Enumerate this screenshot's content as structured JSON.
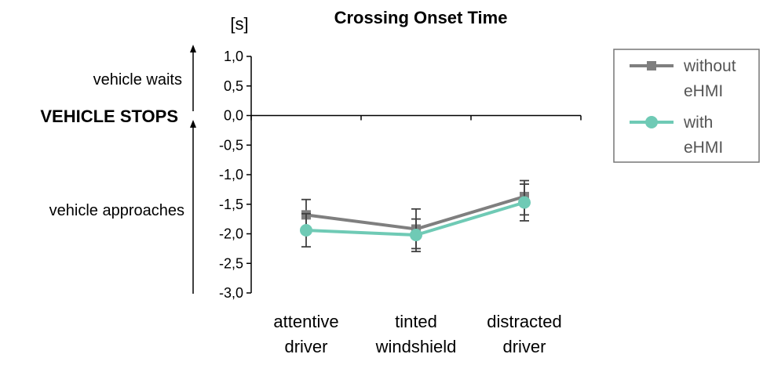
{
  "chart_data": {
    "type": "line",
    "title": "Crossing Onset Time",
    "ylabel": "[s]",
    "ylim": [
      -3.0,
      1.0
    ],
    "yticks": [
      1.0,
      0.5,
      0.0,
      -0.5,
      -1.0,
      -1.5,
      -2.0,
      -2.5,
      -3.0
    ],
    "ytick_labels": [
      "1,0",
      "0,5",
      "0,0",
      "-0,5",
      "-1,0",
      "-1,5",
      "-2,0",
      "-2,5",
      "-3,0"
    ],
    "categories": [
      [
        "attentive",
        "driver"
      ],
      [
        "tinted",
        "windshield"
      ],
      [
        "distracted",
        "driver"
      ]
    ],
    "series": [
      {
        "name": [
          "without",
          "eHMI"
        ],
        "color": "#7f7f7f",
        "marker": "square",
        "values": [
          -1.68,
          -1.92,
          -1.37
        ],
        "error_low": [
          -1.95,
          -2.25,
          -1.68
        ],
        "error_high": [
          -1.42,
          -1.58,
          -1.1
        ]
      },
      {
        "name": [
          "with",
          "eHMI"
        ],
        "color": "#6fcab5",
        "marker": "circle",
        "values": [
          -1.94,
          -2.02,
          -1.47
        ],
        "error_low": [
          -2.22,
          -2.3,
          -1.78
        ],
        "error_high": [
          -1.66,
          -1.75,
          -1.16
        ]
      }
    ],
    "grid": false,
    "legend_position": "right",
    "annotations": {
      "vehicle_waits": "vehicle waits",
      "vehicle_stops": "VEHICLE STOPS",
      "vehicle_approaches": "vehicle approaches"
    }
  }
}
